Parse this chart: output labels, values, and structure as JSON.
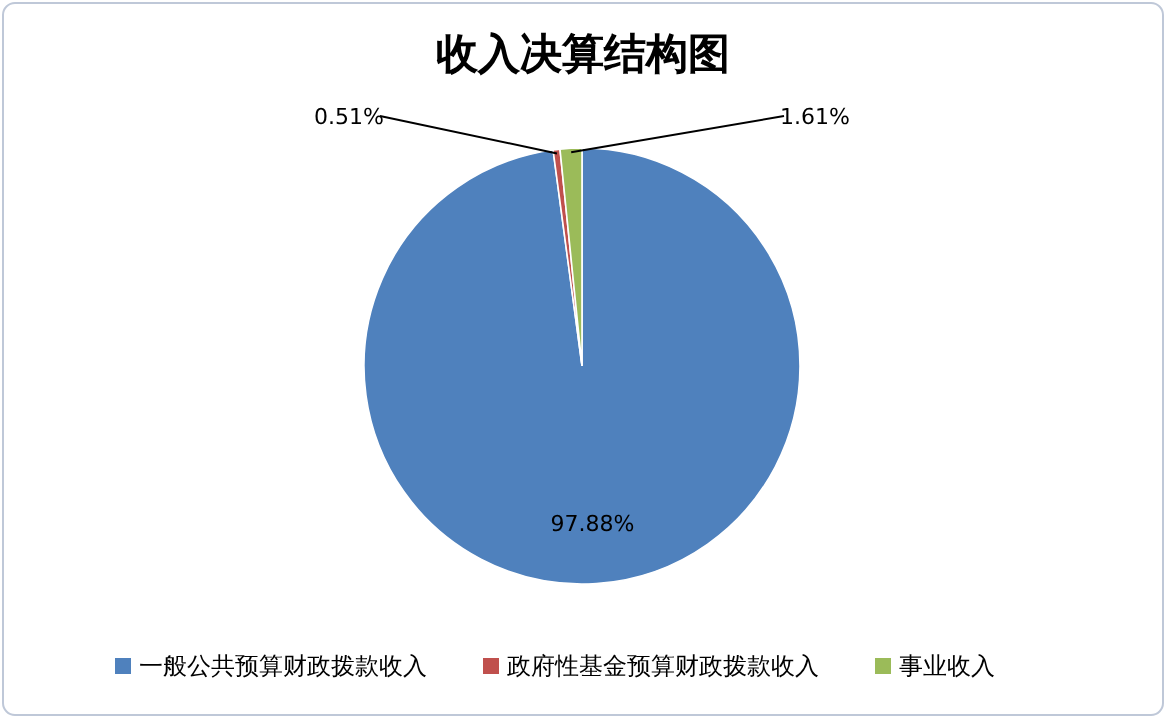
{
  "chart_data": {
    "type": "pie",
    "title": "收入决算结构图",
    "categories": [
      "一般公共预算财政拨款收入",
      "政府性基金预算财政拨款收入",
      "事业收入"
    ],
    "values": [
      97.88,
      0.51,
      1.61
    ],
    "colors": [
      "#4f81bd",
      "#c0504d",
      "#9bbb59"
    ],
    "value_labels": [
      "97.88%",
      "0.51%",
      "1.61%"
    ],
    "legend": "bottom"
  }
}
